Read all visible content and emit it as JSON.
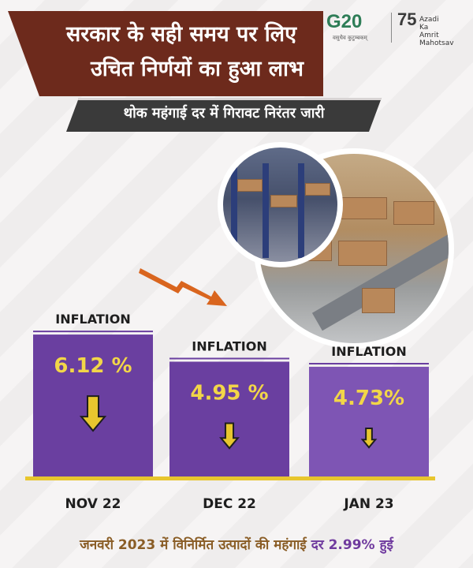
{
  "header": {
    "title_line1": "सरकार के सही समय पर लिए",
    "title_line2": "उचित निर्णयों का हुआ लाभ",
    "subtitle": "थोक महंगाई दर में गिरावट निरंतर जारी"
  },
  "logos": {
    "g20_text": "G20",
    "g20_tagline": "वसुधैव कुटुम्बकम्",
    "akam_number": "75",
    "akam_line1": "Azadi",
    "akam_line2": "Ka",
    "akam_line3": "Amrit Mahotsav"
  },
  "chart_data": {
    "type": "bar",
    "categories": [
      "NOV 22",
      "DEC 22",
      "JAN 23"
    ],
    "values": [
      6.12,
      4.95,
      4.73
    ],
    "value_labels": [
      "6.12 %",
      "4.95 %",
      "4.73%"
    ],
    "bar_label": "INFLATION",
    "unit": "%",
    "colors": {
      "bar": "#6a3fa0",
      "bar_light": "#7e55b4",
      "baseline": "#e8c62e",
      "value_text": "#f2d648",
      "down_arrow": "#e8c62e"
    }
  },
  "footer": {
    "text": "जनवरी 2023 में विनिर्मित उत्पादों की महंगाई",
    "highlight": "दर 2.99% हुई"
  },
  "colors": {
    "banner": "#6d2a1c",
    "sub_banner": "#3a3a3a",
    "trend_arrow": "#d9651e",
    "footer_text": "#8a5d26",
    "footer_highlight": "#6f3a9e"
  }
}
